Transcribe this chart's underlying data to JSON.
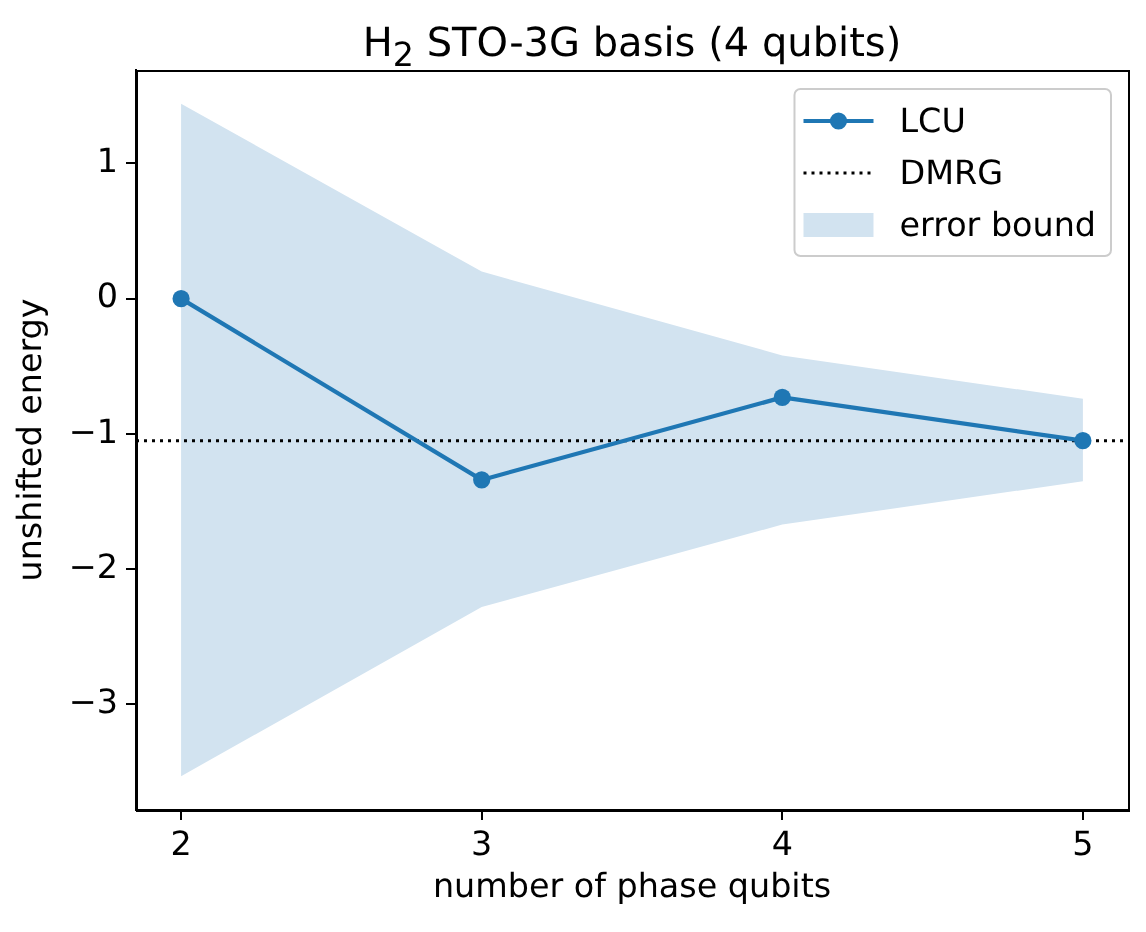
{
  "chart_data": {
    "type": "line",
    "title": "H$_{2}$ STO-3G basis (4 qubits)",
    "xlabel": "number of phase qubits",
    "ylabel": "unshifted energy",
    "x": [
      2,
      3,
      4,
      5
    ],
    "series": [
      {
        "name": "LCU",
        "color": "#1f77b4",
        "values": [
          0,
          -1.34,
          -0.73,
          -1.05
        ]
      },
      {
        "name": "error bound",
        "type": "area",
        "color": "#d2e3f0",
        "values": [
          null,
          null,
          null,
          null
        ],
        "lower": [
          -3.53,
          -2.28,
          -1.67,
          -1.35
        ],
        "upper": [
          1.44,
          0.2,
          -0.42,
          -0.74
        ]
      }
    ],
    "ref_lines": [
      {
        "axis": "y",
        "value": -1.05,
        "label": "DMRG",
        "color": "#000000",
        "line_style": "dotted"
      }
    ],
    "xlim": [
      1.85,
      5.15
    ],
    "xticks": [
      2,
      3,
      4,
      5
    ],
    "ylim": [
      -3.78,
      1.69
    ],
    "yticks": [
      -3,
      -2,
      -1,
      0,
      1
    ],
    "grid": false,
    "legend": "top right",
    "marker": "circle"
  }
}
